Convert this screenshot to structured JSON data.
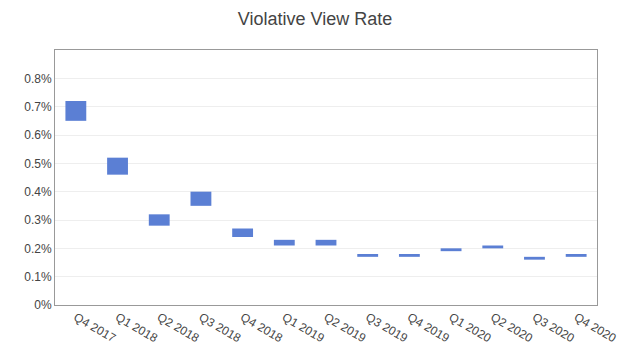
{
  "chart_data": {
    "type": "bar",
    "title": "Violative View Rate",
    "categories": [
      "Q4 2017",
      "Q1 2018",
      "Q2 2018",
      "Q3 2018",
      "Q4 2018",
      "Q1 2019",
      "Q2 2019",
      "Q3 2019",
      "Q4 2019",
      "Q1 2020",
      "Q2 2020",
      "Q3 2020",
      "Q4 2020"
    ],
    "bottoms": [
      0.0065,
      0.0046,
      0.0028,
      0.0035,
      0.0024,
      0.0021,
      0.0021,
      0.0017,
      0.0017,
      0.0019,
      0.002,
      0.0016,
      0.0017
    ],
    "tops": [
      0.0072,
      0.0052,
      0.0032,
      0.004,
      0.0027,
      0.0023,
      0.0023,
      0.0018,
      0.0018,
      0.002,
      0.0021,
      0.0017,
      0.0018
    ],
    "color": "#5b7fd4",
    "ylim": [
      0.0,
      0.009
    ],
    "yticks": [
      {
        "value": 0.0,
        "label": "0%"
      },
      {
        "value": 0.001,
        "label": "0.1%"
      },
      {
        "value": 0.002,
        "label": "0.2%"
      },
      {
        "value": 0.003,
        "label": "0.3%"
      },
      {
        "value": 0.004,
        "label": "0.4%"
      },
      {
        "value": 0.005,
        "label": "0.5%"
      },
      {
        "value": 0.006,
        "label": "0.6%"
      },
      {
        "value": 0.007,
        "label": "0.7%"
      },
      {
        "value": 0.008,
        "label": "0.8%"
      }
    ],
    "grid": true
  }
}
